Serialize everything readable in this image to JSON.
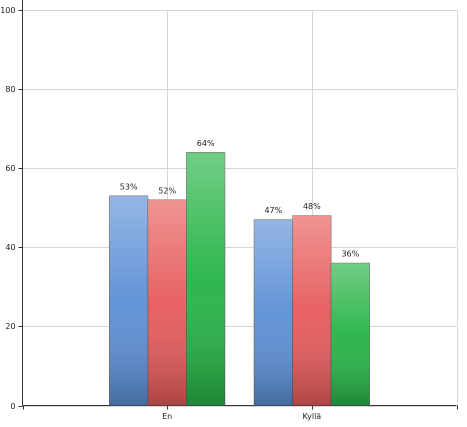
{
  "chart_data": {
    "type": "bar",
    "categories": [
      "En",
      "Kyllä"
    ],
    "series": [
      {
        "color": "#5b8fd6",
        "values": [
          53,
          47
        ],
        "value_labels": [
          "53%",
          "47%"
        ]
      },
      {
        "color": "#e65a5a",
        "values": [
          52,
          48
        ],
        "value_labels": [
          "52%",
          "48%"
        ]
      },
      {
        "color": "#25b345",
        "values": [
          64,
          36
        ],
        "value_labels": [
          "64%",
          "36%"
        ]
      }
    ],
    "ylim": [
      0,
      100
    ],
    "yticks": [
      0,
      20,
      40,
      60,
      80,
      100
    ],
    "grid": true
  }
}
